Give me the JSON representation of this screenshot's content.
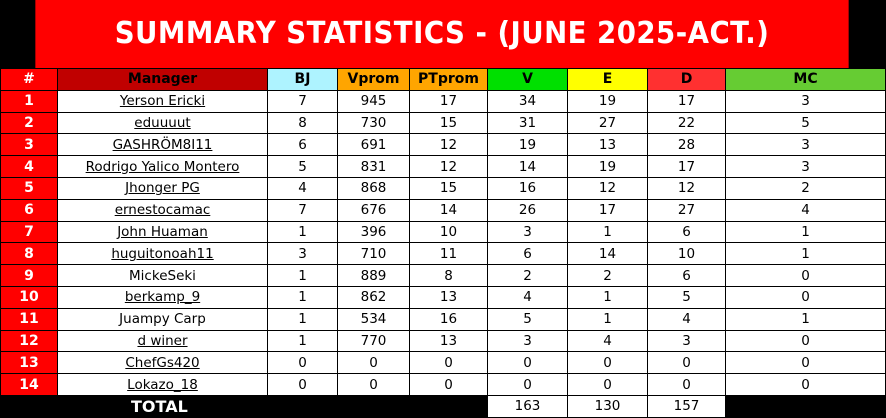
{
  "title": "SUMMARY STATISTICS - (JUNE 2025-ACT.)",
  "colors": {
    "title_bg": "#ff0000",
    "rank_bg": "#ff0000",
    "manager_header": "#c00000",
    "bj_header": "#aef3ff",
    "vprom_header": "#ffa500",
    "ptprom_header": "#ffa500",
    "v_header": "#00e000",
    "e_header": "#ffff00",
    "d_header": "#ff3030",
    "mc_header": "#66cc33"
  },
  "headers": {
    "rank": "#",
    "manager": "Manager",
    "bj": "BJ",
    "vprom": "Vprom",
    "ptprom": "PTprom",
    "v": "V",
    "e": "E",
    "d": "D",
    "mc": "MC"
  },
  "rows": [
    {
      "rank": "1",
      "manager": "Yerson Ericki",
      "bj": "7",
      "vprom": "945",
      "ptprom": "17",
      "v": "34",
      "e": "19",
      "d": "17",
      "mc": "3"
    },
    {
      "rank": "2",
      "manager": "eduuuut",
      "bj": "8",
      "vprom": "730",
      "ptprom": "15",
      "v": "31",
      "e": "27",
      "d": "22",
      "mc": "5"
    },
    {
      "rank": "3",
      "manager": "GASHRÖM8I11",
      "bj": "6",
      "vprom": "691",
      "ptprom": "12",
      "v": "19",
      "e": "13",
      "d": "28",
      "mc": "3"
    },
    {
      "rank": "4",
      "manager": "Rodrigo Yalico Montero",
      "bj": "5",
      "vprom": "831",
      "ptprom": "12",
      "v": "14",
      "e": "19",
      "d": "17",
      "mc": "3"
    },
    {
      "rank": "5",
      "manager": "Jhonger PG",
      "bj": "4",
      "vprom": "868",
      "ptprom": "15",
      "v": "16",
      "e": "12",
      "d": "12",
      "mc": "2"
    },
    {
      "rank": "6",
      "manager": "ernestocamac",
      "bj": "7",
      "vprom": "676",
      "ptprom": "14",
      "v": "26",
      "e": "17",
      "d": "27",
      "mc": "4"
    },
    {
      "rank": "7",
      "manager": "John Huaman",
      "bj": "1",
      "vprom": "396",
      "ptprom": "10",
      "v": "3",
      "e": "1",
      "d": "6",
      "mc": "1"
    },
    {
      "rank": "8",
      "manager": "huguitonoah11",
      "bj": "3",
      "vprom": "710",
      "ptprom": "11",
      "v": "6",
      "e": "14",
      "d": "10",
      "mc": "1"
    },
    {
      "rank": "9",
      "manager": "MickeSeki",
      "bj": "1",
      "vprom": "889",
      "ptprom": "8",
      "v": "2",
      "e": "2",
      "d": "6",
      "mc": "0"
    },
    {
      "rank": "10",
      "manager": "berkamp_9",
      "bj": "1",
      "vprom": "862",
      "ptprom": "13",
      "v": "4",
      "e": "1",
      "d": "5",
      "mc": "0"
    },
    {
      "rank": "11",
      "manager": "Juampy Carp",
      "bj": "1",
      "vprom": "534",
      "ptprom": "16",
      "v": "5",
      "e": "1",
      "d": "4",
      "mc": "1"
    },
    {
      "rank": "12",
      "manager": "d winer",
      "bj": "1",
      "vprom": "770",
      "ptprom": "13",
      "v": "3",
      "e": "4",
      "d": "3",
      "mc": "0"
    },
    {
      "rank": "13",
      "manager": "ChefGs420",
      "bj": "0",
      "vprom": "0",
      "ptprom": "0",
      "v": "0",
      "e": "0",
      "d": "0",
      "mc": "0"
    },
    {
      "rank": "14",
      "manager": "Lokazo_18",
      "bj": "0",
      "vprom": "0",
      "ptprom": "0",
      "v": "0",
      "e": "0",
      "d": "0",
      "mc": "0"
    }
  ],
  "total": {
    "label": "TOTAL",
    "v": "163",
    "e": "130",
    "d": "157"
  }
}
